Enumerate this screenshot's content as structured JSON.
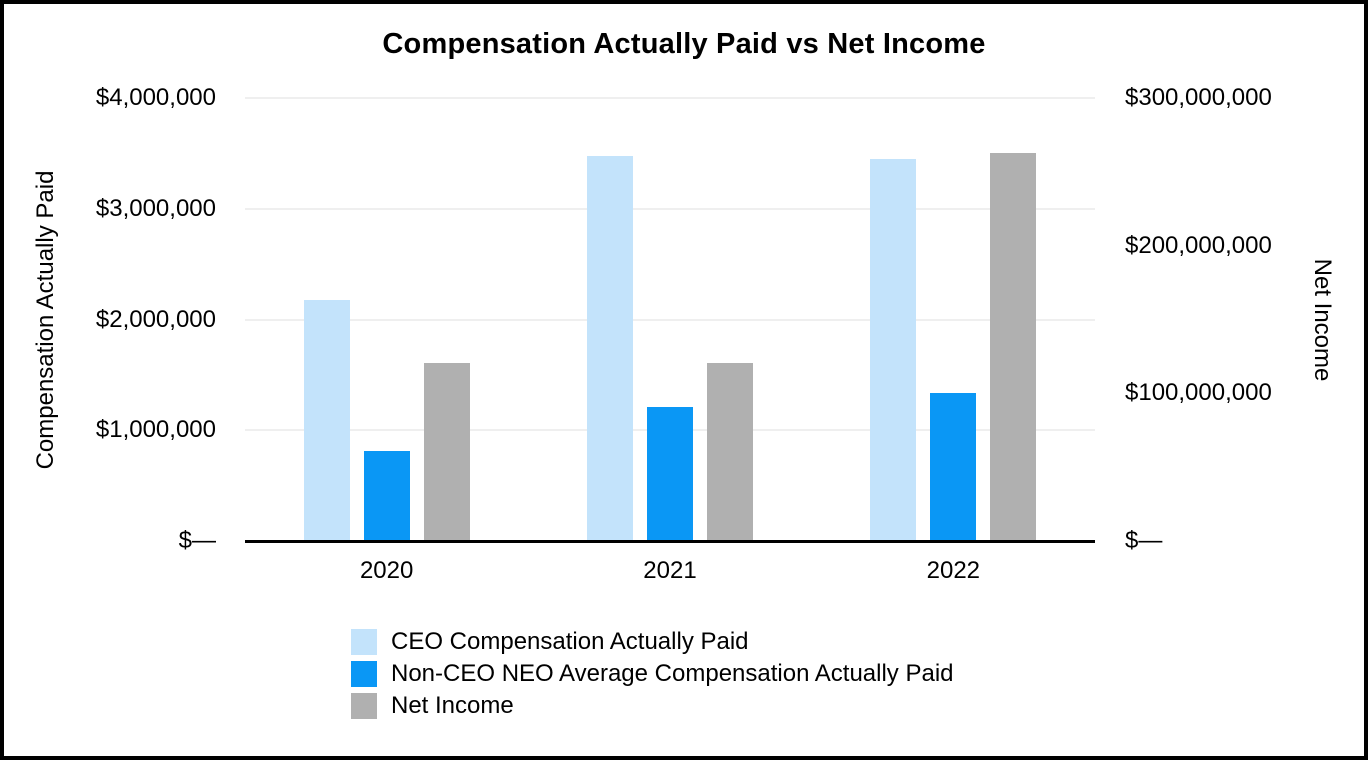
{
  "chart_data": {
    "type": "bar",
    "title": "Compensation Actually Paid vs Net Income",
    "categories": [
      "2020",
      "2021",
      "2022"
    ],
    "series": [
      {
        "name": "CEO Compensation Actually Paid",
        "key": "ceo-compensation-actually-paid",
        "axis": "left",
        "color": "#C3E3FB",
        "values": [
          2170000,
          3470000,
          3440000
        ]
      },
      {
        "name": "Non-CEO NEO Average Compensation Actually Paid",
        "key": "non-ceo-neo-average-compensation-actually-paid",
        "axis": "left",
        "color": "#0A97F5",
        "values": [
          800000,
          1200000,
          1330000
        ]
      },
      {
        "name": "Net Income",
        "key": "net-income",
        "axis": "right",
        "color": "#B0B0B0",
        "values": [
          120000000,
          120000000,
          262000000
        ]
      }
    ],
    "left_axis": {
      "label": "Compensation Actually Paid",
      "min": 0,
      "max": 4000000,
      "ticks": [
        {
          "value": 4000000,
          "label": "$4,000,000"
        },
        {
          "value": 3000000,
          "label": "$3,000,000"
        },
        {
          "value": 2000000,
          "label": "$2,000,000"
        },
        {
          "value": 1000000,
          "label": "$1,000,000"
        },
        {
          "value": 0,
          "label": "$—"
        }
      ]
    },
    "right_axis": {
      "label": "Net Income",
      "min": 0,
      "max": 300000000,
      "ticks": [
        {
          "value": 300000000,
          "label": "$300,000,000"
        },
        {
          "value": 200000000,
          "label": "$200,000,000"
        },
        {
          "value": 100000000,
          "label": "$100,000,000"
        },
        {
          "value": 0,
          "label": "$—"
        }
      ]
    },
    "grid": true,
    "legend_position": "bottom-left",
    "colors": {
      "gridline": "#EFEFEF",
      "axis_line": "#000000",
      "background": "#FFFFFF",
      "frame_border": "#000000",
      "text": "#000000"
    }
  }
}
